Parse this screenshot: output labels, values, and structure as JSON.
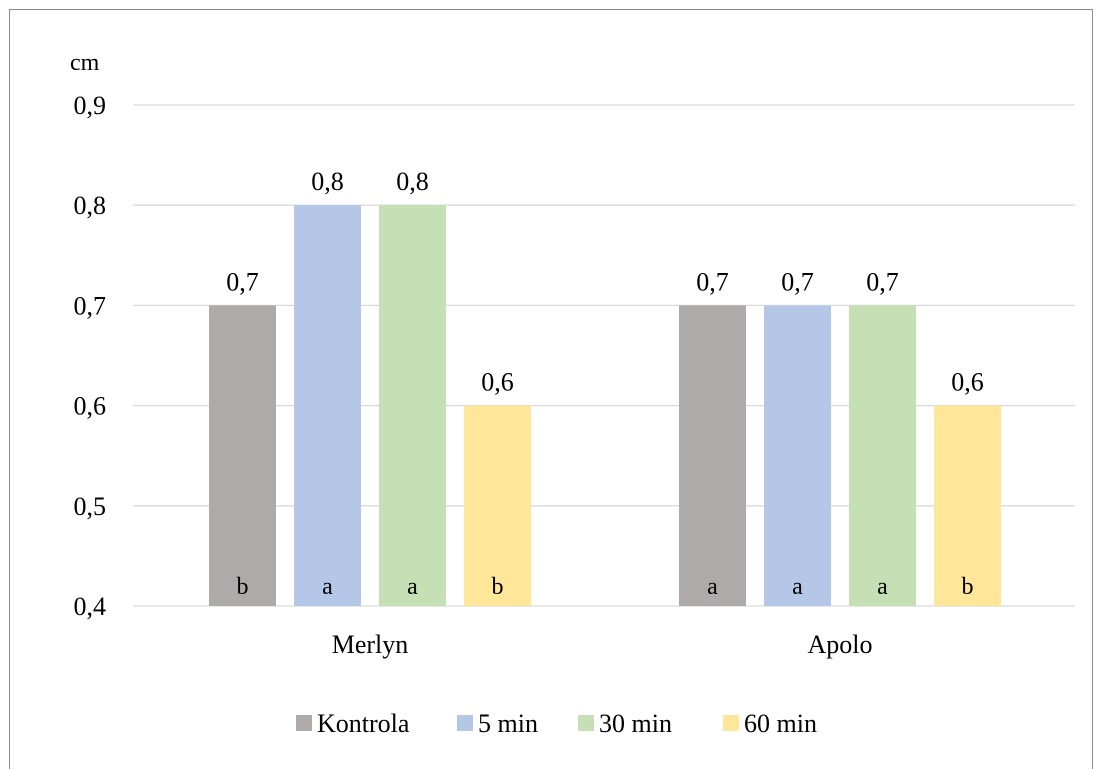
{
  "chart_data": {
    "type": "bar",
    "unit_label": "cm",
    "categories": [
      "Merlyn",
      "Apolo"
    ],
    "ylim": [
      0.4,
      0.9
    ],
    "yticks": [
      {
        "value": 0.4,
        "label": "0,4"
      },
      {
        "value": 0.5,
        "label": "0,5"
      },
      {
        "value": 0.6,
        "label": "0,6"
      },
      {
        "value": 0.7,
        "label": "0,7"
      },
      {
        "value": 0.8,
        "label": "0,8"
      },
      {
        "value": 0.9,
        "label": "0,9"
      }
    ],
    "grid": true,
    "legend_position": "bottom",
    "series": [
      {
        "name": "Kontrola",
        "color": "#aeaaaa",
        "values": [
          0.7,
          0.7
        ],
        "value_labels": [
          "0,7",
          "0,7"
        ],
        "letters": [
          "b",
          "a"
        ]
      },
      {
        "name": "5 min",
        "color": "#b4c7e7",
        "values": [
          0.8,
          0.7
        ],
        "value_labels": [
          "0,8",
          "0,7"
        ],
        "letters": [
          "a",
          "a"
        ]
      },
      {
        "name": "30 min",
        "color": "#c5e0b4",
        "values": [
          0.8,
          0.7
        ],
        "value_labels": [
          "0,8",
          "0,7"
        ],
        "letters": [
          "a",
          "a"
        ]
      },
      {
        "name": "60 min",
        "color": "#ffe699",
        "values": [
          0.6,
          0.6
        ],
        "value_labels": [
          "0,6",
          "0,6"
        ],
        "letters": [
          "b",
          "b"
        ]
      }
    ]
  }
}
